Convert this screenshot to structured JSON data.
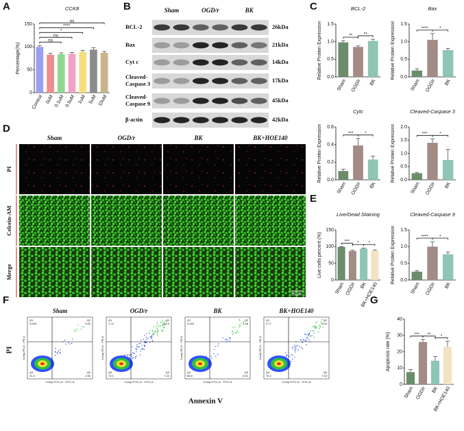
{
  "figure": {
    "panel_letters": [
      "A",
      "B",
      "C",
      "D",
      "E",
      "F",
      "G"
    ],
    "blot": {
      "groups": [
        "Sham",
        "OGD/r",
        "BK"
      ],
      "rows": [
        {
          "label": [
            "BCL-2"
          ],
          "size": "26kDa"
        },
        {
          "label": [
            "Bax"
          ],
          "size": "21kDa"
        },
        {
          "label": [
            "Cyt c"
          ],
          "size": "14kDa"
        },
        {
          "label": [
            "Cleaved-",
            "Caspase 3"
          ],
          "size": "17kDa"
        },
        {
          "label": [
            "Cleaved-",
            "Caspase 9"
          ],
          "size": "45kDa"
        },
        {
          "label": [
            "β-actin"
          ],
          "size": "42kDa"
        }
      ]
    },
    "staining": {
      "columns": [
        "Sham",
        "OGD/r",
        "BK",
        "BK+HOE140"
      ],
      "rows": [
        "PI",
        "Celcein-AM",
        "Merge"
      ],
      "scale": "250μm"
    },
    "flow": {
      "columns": [
        "Sham",
        "OGD/r",
        "BK",
        "BK+HOE140"
      ],
      "quadrants": [
        "Q1",
        "Q2",
        "Q3",
        "Q4"
      ],
      "values": [
        [
          "0.099",
          "5.63",
          "2.96",
          "91.3"
        ],
        [
          "1.74",
          "19.0",
          "7.22",
          "72.0"
        ],
        [
          "0.023",
          "4.48",
          "8.91",
          "86.6"
        ],
        [
          "0.77",
          "13.8",
          "7.23",
          "78.2"
        ]
      ],
      "plot_y": "Comp-PE-A :: PE-A",
      "plot_x": "Comp-FITC-A :: FITC-A",
      "y_label": "PI",
      "x_label": "Annexin V"
    }
  },
  "chart_data": [
    {
      "type": "bar",
      "title": "CCK8",
      "ylabel": "Percentage(%)",
      "categories": [
        "Control",
        "0uM",
        "0.1uM",
        "0.5uM",
        "1uM",
        "5uM",
        "10uM"
      ],
      "values": [
        100,
        83,
        84,
        85,
        89,
        94,
        87
      ],
      "errors": [
        3,
        3,
        3,
        3,
        3,
        4,
        3
      ],
      "colors": [
        "#9c9ef2",
        "#f08c8c",
        "#90d890",
        "#f2a2c8",
        "#f4df7c",
        "#8c8c8c",
        "#c9b48c"
      ],
      "ylim": [
        0,
        150
      ],
      "yticks": [
        0,
        50,
        100,
        150
      ],
      "annotations": [
        {
          "text": "ns",
          "between": [
            "Control",
            "10uM"
          ]
        },
        {
          "text": "****",
          "between": [
            "Control",
            "5uM"
          ]
        },
        {
          "text": "*",
          "between": [
            "Control",
            "1uM"
          ]
        },
        {
          "text": "ns",
          "between": [
            "Control",
            "0.5uM"
          ]
        },
        {
          "text": "ns",
          "between": [
            "Control",
            "0.1uM"
          ]
        }
      ]
    },
    {
      "type": "bar",
      "title": "BCL-2",
      "ylabel": "Relative Protien Expression",
      "categories": [
        "Sham",
        "OGD/r",
        "BK"
      ],
      "values": [
        0.98,
        0.85,
        1.02
      ],
      "errors": [
        0.05,
        0.03,
        0.05
      ],
      "colors": [
        "#6b8d6b",
        "#a38b86",
        "#8ec5b5"
      ],
      "ylim": [
        0,
        1.5
      ],
      "yticks": [
        {
          "value": 0,
          "label": "0.0"
        },
        0.5,
        {
          "value": 1,
          "label": "1.0"
        },
        1.5
      ],
      "annotations": [
        {
          "text": "**",
          "between": [
            "Sham",
            "OGD/r"
          ]
        },
        {
          "text": "**",
          "between": [
            "OGD/r",
            "BK"
          ]
        }
      ]
    },
    {
      "type": "bar",
      "title": "Bax",
      "ylabel": "Relative Protien Expression",
      "categories": [
        "Sham",
        "OGD/r",
        "BK"
      ],
      "values": [
        0.18,
        1.05,
        0.76
      ],
      "errors": [
        0.05,
        0.18,
        0.05
      ],
      "colors": [
        "#6b8d6b",
        "#a38b86",
        "#8ec5b5"
      ],
      "ylim": [
        0,
        1.5
      ],
      "yticks": [
        {
          "value": 0,
          "label": "0.0"
        },
        0.5,
        {
          "value": 1,
          "label": "1.0"
        },
        1.5
      ],
      "annotations": [
        {
          "text": "****",
          "between": [
            "Sham",
            "OGD/r"
          ]
        },
        {
          "text": "*",
          "between": [
            "OGD/r",
            "BK"
          ]
        }
      ]
    },
    {
      "type": "bar",
      "title": "Cytc",
      "ylabel": "Relative Protien Expression",
      "categories": [
        "Sham",
        "OGD/r",
        "BK"
      ],
      "values": [
        0.1,
        0.39,
        0.23
      ],
      "errors": [
        0.02,
        0.08,
        0.04
      ],
      "colors": [
        "#6b8d6b",
        "#a38b86",
        "#8ec5b5"
      ],
      "ylim": [
        0,
        0.6
      ],
      "yticks": [
        {
          "value": 0,
          "label": "0.0"
        },
        0.2,
        0.4,
        0.6
      ],
      "annotations": [
        {
          "text": "***",
          "between": [
            "Sham",
            "OGD/r"
          ]
        },
        {
          "text": "*",
          "between": [
            "OGD/r",
            "BK"
          ]
        }
      ]
    },
    {
      "type": "bar",
      "title": "Cleaved-Caspase 3",
      "ylabel": "Relative Protien Expression",
      "categories": [
        "Sham",
        "OGD/r",
        "BK"
      ],
      "values": [
        0.25,
        1.4,
        0.75
      ],
      "errors": [
        0.03,
        0.15,
        0.4
      ],
      "colors": [
        "#6b8d6b",
        "#a38b86",
        "#8ec5b5"
      ],
      "ylim": [
        0,
        2
      ],
      "yticks": [
        {
          "value": 0,
          "label": "0.0"
        },
        0.5,
        {
          "value": 1,
          "label": "1.0"
        },
        1.5,
        {
          "value": 2,
          "label": "2.0"
        }
      ],
      "annotations": [
        {
          "text": "***",
          "between": [
            "Sham",
            "OGD/r"
          ]
        },
        {
          "text": "*",
          "between": [
            "OGD/r",
            "BK"
          ]
        }
      ]
    },
    {
      "type": "bar",
      "title": "Live/Dead Staining",
      "ylabel": "Live cells percent (%)",
      "categories": [
        "Sham",
        "OGD/r",
        "BK",
        "BK+HOE140"
      ],
      "values": [
        99,
        87,
        94,
        88
      ],
      "errors": [
        1,
        2,
        2,
        2
      ],
      "colors": [
        "#6b8d6b",
        "#a38b86",
        "#8ec5b5",
        "#f3e2c4"
      ],
      "ylim": [
        0,
        150
      ],
      "yticks": [
        0,
        50,
        100,
        150
      ],
      "annotations": [
        {
          "text": "***",
          "between": [
            "Sham",
            "OGD/r"
          ]
        },
        {
          "text": "*",
          "between": [
            "OGD/r",
            "BK"
          ]
        },
        {
          "text": "*",
          "between": [
            "BK",
            "BK+HOE140"
          ]
        }
      ]
    },
    {
      "type": "bar",
      "title": "Cleaved-Caspase 9",
      "ylabel": "Relative Protien Expression",
      "categories": [
        "Sham",
        "OGD/r",
        "BK"
      ],
      "values": [
        0.25,
        1.0,
        0.77
      ],
      "errors": [
        0.03,
        0.15,
        0.07
      ],
      "colors": [
        "#6b8d6b",
        "#a38b86",
        "#8ec5b5"
      ],
      "ylim": [
        0,
        1.5
      ],
      "yticks": [
        {
          "value": 0,
          "label": "0.0"
        },
        0.5,
        {
          "value": 1,
          "label": "1.0"
        },
        1.5
      ],
      "annotations": [
        {
          "text": "****",
          "between": [
            "Sham",
            "OGD/r"
          ]
        },
        {
          "text": "*",
          "between": [
            "OGD/r",
            "BK"
          ]
        }
      ]
    },
    {
      "type": "bar",
      "title": null,
      "ylabel": "Apoptosis rate (%)",
      "categories": [
        "Sham",
        "OGD/r",
        "BK",
        "BK+HOE140"
      ],
      "values": [
        7.5,
        26,
        14.5,
        23
      ],
      "errors": [
        1.5,
        1.5,
        2.5,
        3.5
      ],
      "colors": [
        "#6b8d6b",
        "#a38b86",
        "#8ec5b5",
        "#f3e2c4"
      ],
      "ylim": [
        0,
        40
      ],
      "yticks": [
        0,
        10,
        20,
        30,
        40
      ],
      "annotations": [
        {
          "text": "***",
          "between": [
            "Sham",
            "OGD/r"
          ]
        },
        {
          "text": "**",
          "between": [
            "OGD/r",
            "BK"
          ]
        },
        {
          "text": "*",
          "between": [
            "BK",
            "BK+HOE140"
          ]
        }
      ]
    }
  ]
}
